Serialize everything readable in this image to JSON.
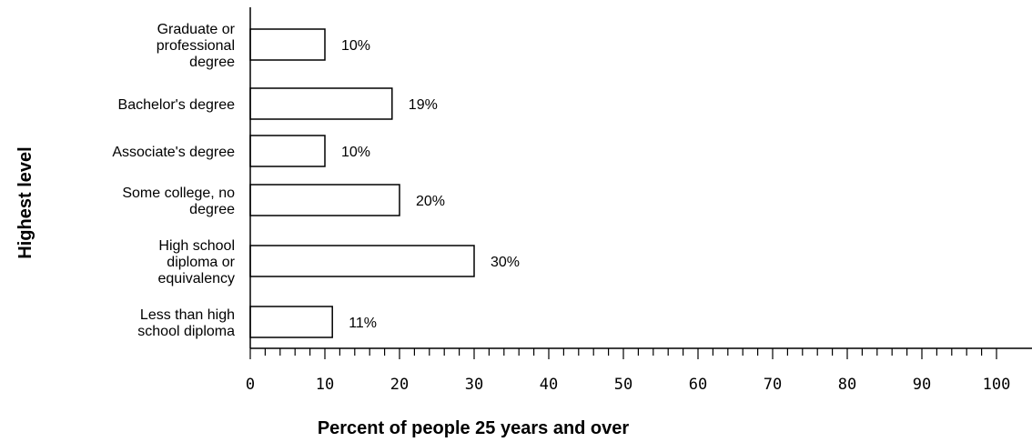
{
  "chart_data": {
    "type": "bar",
    "orientation": "horizontal",
    "title": "",
    "xlabel": "Percent of people 25 years and over",
    "ylabel": "Highest level",
    "xlim": [
      0,
      100
    ],
    "grid": false,
    "categories": [
      [
        "Graduate or",
        "professional",
        "degree"
      ],
      [
        "Bachelor's degree"
      ],
      [
        "Associate's degree"
      ],
      [
        "Some college, no",
        "degree"
      ],
      [
        "High school",
        "diploma or",
        "equivalency"
      ],
      [
        "Less than high",
        "school diploma"
      ]
    ],
    "values": [
      10,
      19,
      10,
      20,
      30,
      11
    ],
    "value_labels": [
      "10%",
      "19%",
      "10%",
      "20%",
      "30%",
      "11%"
    ],
    "x_tick_labels": [
      "0",
      "10",
      "20",
      "30",
      "40",
      "50",
      "60",
      "70",
      "80",
      "90",
      "100"
    ],
    "bar_fill": "#ffffff",
    "bar_stroke": "#000000"
  }
}
